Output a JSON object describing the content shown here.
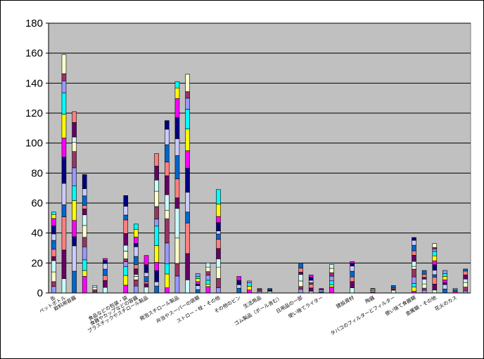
{
  "chart_data": {
    "type": "bar",
    "stacked": true,
    "grid": true,
    "legend": "none",
    "plot_background": "#C0C0C0",
    "ylim": [
      0,
      180
    ],
    "yticks": [
      0,
      20,
      40,
      60,
      80,
      100,
      120,
      140,
      160,
      180
    ],
    "categories": [
      "缶",
      "ペットボトル",
      "飲料用容器",
      "",
      "",
      "",
      "",
      "食品などの包装・袋",
      "食器やカップなどの容器",
      "プラスチックやスチロール製品",
      "",
      "",
      "発泡スチロール製品",
      "",
      "弁当やスーパーの袋類",
      "",
      "ストロー・栓・その他",
      "",
      "その他のビン",
      "",
      "生活用品",
      "",
      "ゴム製品（ボール含む）",
      "",
      "日用品の一部",
      "",
      "使い捨てライター",
      "",
      "",
      "建設資材",
      "",
      "陶器",
      "",
      "タバコのフィルターとフィルター",
      "",
      "使い捨て食器類",
      "",
      "金属類・その他",
      "",
      "花火のカス",
      ""
    ],
    "totals": [
      54,
      159,
      121,
      79,
      5,
      23,
      0,
      65,
      46,
      25,
      93,
      115,
      141,
      146,
      13,
      20,
      69,
      0,
      11,
      8,
      3,
      3,
      0,
      0,
      20,
      12,
      3,
      19,
      0,
      21,
      0,
      3,
      0,
      5,
      0,
      37,
      15,
      33,
      15,
      3,
      16
    ],
    "series_colors": [
      "#9999FF",
      "#993366",
      "#FFFFCC",
      "#CCFFFF",
      "#660066",
      "#FF8080",
      "#0066CC",
      "#CCCCFF",
      "#000080",
      "#FF00FF",
      "#FFFF00",
      "#00FFFF"
    ]
  }
}
